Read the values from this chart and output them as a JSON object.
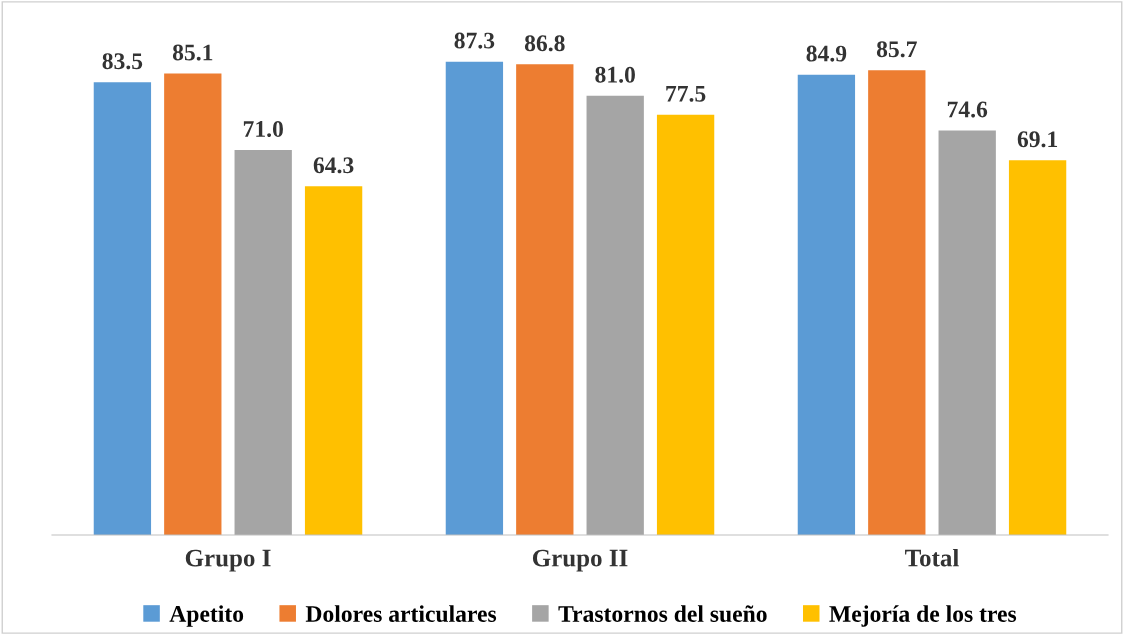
{
  "chart_data": {
    "type": "bar",
    "categories": [
      "Grupo I",
      "Grupo II",
      "Total"
    ],
    "series": [
      {
        "name": "Apetito",
        "color": "#5b9bd5",
        "values": [
          83.5,
          87.3,
          84.9
        ],
        "value_labels": [
          "83.5",
          "87.3",
          "84.9"
        ]
      },
      {
        "name": "Dolores articulares",
        "color": "#ed7d31",
        "values": [
          85.1,
          86.8,
          85.7
        ],
        "value_labels": [
          "85.1",
          "86.8",
          "85.7"
        ]
      },
      {
        "name": "Trastornos del sueño",
        "color": "#a5a5a5",
        "values": [
          71.0,
          81.0,
          74.6
        ],
        "value_labels": [
          "71.0",
          "81.0",
          "74.6"
        ]
      },
      {
        "name": "Mejoría de los tres",
        "color": "#ffc000",
        "values": [
          64.3,
          77.5,
          69.1
        ],
        "value_labels": [
          "64.3",
          "77.5",
          "69.1"
        ]
      }
    ],
    "tick_labels": "x",
    "legend": "bottom",
    "grid": false
  }
}
